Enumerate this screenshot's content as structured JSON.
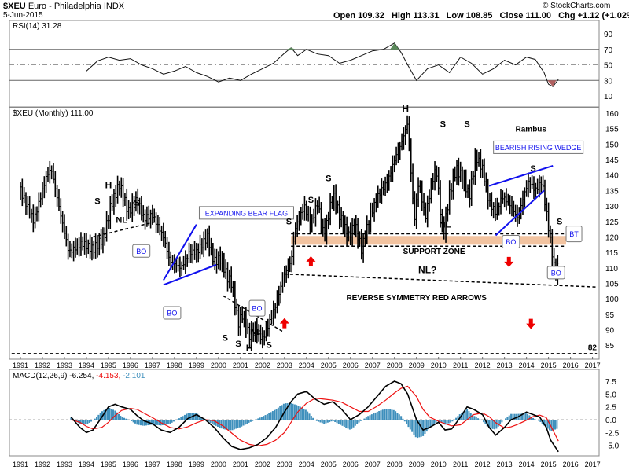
{
  "header": {
    "symbol": "$XEU",
    "name": "Euro - Philadelphia INDX",
    "date": "5-Jun-2015",
    "ohlc_text": "Open 109.32   High 113.31   Low 108.85   Close 111.00   Chg +1.12 (+1.02%)",
    "credit": "© StockCharts.com"
  },
  "chart_data": [
    {
      "type": "line",
      "title": "RSI(14) 31.28",
      "indicator": "RSI",
      "y_ticks": [
        10,
        30,
        50,
        70,
        90
      ],
      "reference_lines": [
        30,
        50,
        70
      ],
      "ylim": [
        0,
        100
      ],
      "x": [
        1994.0,
        1994.5,
        1995.0,
        1995.5,
        1996.0,
        1996.5,
        1997.0,
        1997.5,
        1998.0,
        1998.5,
        1999.0,
        1999.5,
        2000.0,
        2000.5,
        2001.0,
        2001.5,
        2002.0,
        2002.5,
        2003.0,
        2003.3,
        2003.6,
        2004.0,
        2004.5,
        2005.0,
        2005.5,
        2006.0,
        2006.5,
        2007.0,
        2007.5,
        2008.0,
        2008.3,
        2008.6,
        2009.0,
        2009.5,
        2010.0,
        2010.5,
        2011.0,
        2011.5,
        2012.0,
        2012.5,
        2013.0,
        2013.5,
        2014.0,
        2014.4,
        2014.8,
        2015.0,
        2015.2,
        2015.45
      ],
      "values": [
        42,
        55,
        60,
        56,
        58,
        50,
        45,
        38,
        42,
        48,
        40,
        35,
        28,
        33,
        30,
        38,
        45,
        52,
        65,
        72,
        62,
        70,
        64,
        62,
        52,
        56,
        62,
        68,
        70,
        78,
        66,
        50,
        30,
        45,
        50,
        40,
        60,
        52,
        38,
        45,
        56,
        50,
        60,
        57,
        40,
        25,
        22,
        31.28
      ]
    },
    {
      "type": "bar",
      "style": "ohlc",
      "title": "$XEU (Monthly) 111.00",
      "y_ticks": [
        85,
        90,
        95,
        100,
        105,
        110,
        115,
        120,
        125,
        130,
        135,
        140,
        145,
        150,
        155,
        160
      ],
      "ylim": [
        82,
        162
      ],
      "xlabels": [
        "1991",
        "1992",
        "1993",
        "1994",
        "1995",
        "1996",
        "1997",
        "1998",
        "1999",
        "2000",
        "2001",
        "2002",
        "2003",
        "2004",
        "2005",
        "2006",
        "2007",
        "2008",
        "2009",
        "2010",
        "2011",
        "2012",
        "2013",
        "2014",
        "2015",
        "2016",
        "2017"
      ],
      "xlim": [
        1990.5,
        2017.3
      ],
      "anchors_x": [
        1991.0,
        1991.6,
        1992.2,
        1992.4,
        1992.8,
        1993.2,
        1993.8,
        1994.3,
        1994.8,
        1995.1,
        1995.5,
        1995.9,
        1996.3,
        1996.6,
        1997.0,
        1997.5,
        1997.8,
        1998.3,
        1998.7,
        1999.0,
        1999.5,
        1999.8,
        2000.1,
        2000.4,
        2000.6,
        2000.9,
        2001.1,
        2001.4,
        2001.7,
        2002.0,
        2002.3,
        2002.6,
        2003.0,
        2003.3,
        2003.5,
        2003.9,
        2004.2,
        2004.5,
        2004.8,
        2005.2,
        2005.5,
        2005.9,
        2006.2,
        2006.5,
        2006.9,
        2007.3,
        2007.7,
        2008.0,
        2008.3,
        2008.6,
        2008.9,
        2009.1,
        2009.4,
        2009.7,
        2009.9,
        2010.2,
        2010.5,
        2010.8,
        2011.1,
        2011.4,
        2011.7,
        2012.0,
        2012.3,
        2012.6,
        2012.9,
        2013.2,
        2013.6,
        2013.9,
        2014.1,
        2014.4,
        2014.7,
        2014.9,
        2015.1,
        2015.3,
        2015.45
      ],
      "anchors_y": [
        135,
        125,
        140,
        142,
        128,
        115,
        118,
        116,
        120,
        130,
        137,
        128,
        132,
        126,
        127,
        120,
        112,
        110,
        115,
        115,
        120,
        112,
        113,
        107,
        105,
        92,
        95,
        88,
        90,
        87,
        92,
        98,
        108,
        112,
        123,
        130,
        124,
        131,
        120,
        134,
        127,
        120,
        124,
        116,
        127,
        134,
        138,
        145,
        150,
        157,
        125,
        138,
        126,
        138,
        142,
        120,
        134,
        142,
        139,
        133,
        146,
        142,
        131,
        128,
        133,
        131,
        126,
        134,
        138,
        135,
        138,
        128,
        118,
        108,
        111
      ]
    },
    {
      "type": "line",
      "title": "MACD(12,26,9) -6.254, -4.153, -2.101",
      "series_names": [
        "MACD(12,26,9)",
        "signal",
        "histogram"
      ],
      "series_values": [
        "-6.254",
        "-4.153",
        "-2.101"
      ],
      "y_ticks": [
        "7.5",
        "5.0",
        "2.5",
        "0.0",
        "-2.5",
        "-5.0"
      ],
      "y_tick_values": [
        7.5,
        5.0,
        2.5,
        0.0,
        -2.5,
        -5.0
      ],
      "ylim": [
        -6.3,
        8.0
      ],
      "x": [
        1993.3,
        1993.7,
        1994.0,
        1994.3,
        1994.7,
        1995.0,
        1995.3,
        1995.6,
        1996.0,
        1996.3,
        1996.6,
        1997.0,
        1997.4,
        1997.8,
        1998.2,
        1998.6,
        1999.0,
        1999.4,
        1999.8,
        2000.2,
        2000.6,
        2001.0,
        2001.4,
        2001.8,
        2002.2,
        2002.6,
        2003.0,
        2003.3,
        2003.6,
        2004.0,
        2004.4,
        2004.8,
        2005.2,
        2005.6,
        2006.0,
        2006.4,
        2006.8,
        2007.2,
        2007.6,
        2008.0,
        2008.3,
        2008.6,
        2009.0,
        2009.3,
        2009.6,
        2010.0,
        2010.3,
        2010.6,
        2011.0,
        2011.3,
        2011.6,
        2012.0,
        2012.3,
        2012.6,
        2013.0,
        2013.3,
        2013.6,
        2014.0,
        2014.3,
        2014.6,
        2014.9,
        2015.1,
        2015.45
      ],
      "macd": [
        0.5,
        -1.5,
        -2.5,
        -2.0,
        0.5,
        2.5,
        3.0,
        2.5,
        2.0,
        0.8,
        -0.2,
        -0.8,
        -2.0,
        -2.5,
        -1.5,
        0.2,
        1.0,
        0.0,
        -1.5,
        -3.5,
        -5.2,
        -5.8,
        -5.5,
        -4.8,
        -3.5,
        -1.5,
        1.5,
        3.5,
        5.0,
        5.5,
        4.0,
        3.0,
        3.5,
        2.0,
        0.0,
        1.0,
        2.5,
        4.5,
        6.5,
        7.5,
        7.0,
        5.0,
        0.0,
        -2.0,
        -1.5,
        -0.5,
        -2.0,
        -1.8,
        0.5,
        2.5,
        2.0,
        1.0,
        -1.5,
        -3.0,
        -1.5,
        0.0,
        0.5,
        1.5,
        1.0,
        0.5,
        -1.5,
        -4.0,
        -6.25
      ],
      "signal": [
        0.0,
        -0.5,
        -1.3,
        -1.8,
        -1.5,
        -0.5,
        0.8,
        1.8,
        2.2,
        2.0,
        1.3,
        0.4,
        -0.6,
        -1.5,
        -1.8,
        -1.4,
        -0.6,
        0.0,
        -0.2,
        -1.2,
        -2.6,
        -4.0,
        -4.8,
        -5.1,
        -4.8,
        -4.0,
        -2.5,
        -0.5,
        1.5,
        3.2,
        4.2,
        4.0,
        3.8,
        3.4,
        2.5,
        1.6,
        1.6,
        2.6,
        3.8,
        5.2,
        6.1,
        6.5,
        4.5,
        2.0,
        0.5,
        -0.3,
        -0.8,
        -1.2,
        -1.0,
        0.0,
        1.0,
        1.3,
        0.6,
        -0.6,
        -1.6,
        -1.4,
        -0.9,
        -0.1,
        0.6,
        0.9,
        0.4,
        -1.2,
        -4.15
      ]
    }
  ],
  "annotations": {
    "rambus": "Rambus",
    "H": "H",
    "S": "S",
    "NL": "NL",
    "NL_q": "NL?",
    "BO": "BO",
    "BT": "BT",
    "expanding_bear_flag": "EXPANDING BEAR FLAG",
    "bearish_rising_wedge": "BEARISH RISING WEDGE",
    "support_zone": "SUPPORT ZONE",
    "reverse_symmetry": "REVERSE SYMMETRY RED ARROWS",
    "level_82": "82"
  },
  "colors": {
    "bars": "#000000",
    "blue_lines": "#1010ee",
    "support_band": "#f2c3a0",
    "red_arrow": "#ee0000",
    "macd_hist": "#3e8fbc",
    "signal_line": "#ee1111",
    "rsi_fill": "#5a8a5a",
    "oversold_fill": "#b06060",
    "callout_text": "#1010ee"
  }
}
